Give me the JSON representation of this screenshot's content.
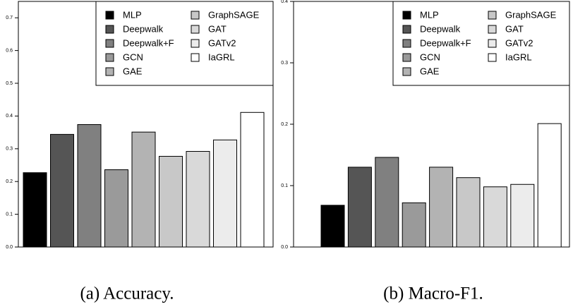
{
  "chart_data": [
    {
      "type": "bar",
      "title": "(a) Accuracy.",
      "categories": [
        "MLP",
        "Deepwalk",
        "Deepwalk+F",
        "GCN",
        "GAE",
        "GraphSAGE",
        "GAT",
        "GATv2",
        "IaGRL"
      ],
      "colors": [
        "#000000",
        "#555555",
        "#808080",
        "#9a9a9a",
        "#b3b3b3",
        "#c8c8c8",
        "#d9d9d9",
        "#ececec",
        "#ffffff"
      ],
      "values": [
        0.227,
        0.344,
        0.374,
        0.236,
        0.351,
        0.277,
        0.292,
        0.327,
        0.411
      ],
      "ylim": [
        0,
        0.75
      ],
      "yticks": [
        {
          "value": 0,
          "label": "0.0"
        },
        0.1,
        0.2,
        0.3,
        0.4,
        0.5,
        0.6,
        0.7
      ]
    },
    {
      "type": "bar",
      "title": "(b) Macro-F1.",
      "categories": [
        "MLP",
        "Deepwalk",
        "Deepwalk+F",
        "GCN",
        "GAE",
        "GraphSAGE",
        "GAT",
        "GATv2",
        "IaGRL"
      ],
      "colors": [
        "#000000",
        "#555555",
        "#808080",
        "#9a9a9a",
        "#b3b3b3",
        "#c8c8c8",
        "#d9d9d9",
        "#ececec",
        "#ffffff"
      ],
      "values": [
        0.068,
        0.13,
        0.146,
        0.072,
        0.13,
        0.113,
        0.098,
        0.102,
        0.201
      ],
      "ylim": [
        0,
        0.4
      ],
      "yticks": [
        {
          "value": 0,
          "label": "0.0"
        },
        0.1,
        0.2,
        0.3,
        0.4
      ]
    }
  ]
}
